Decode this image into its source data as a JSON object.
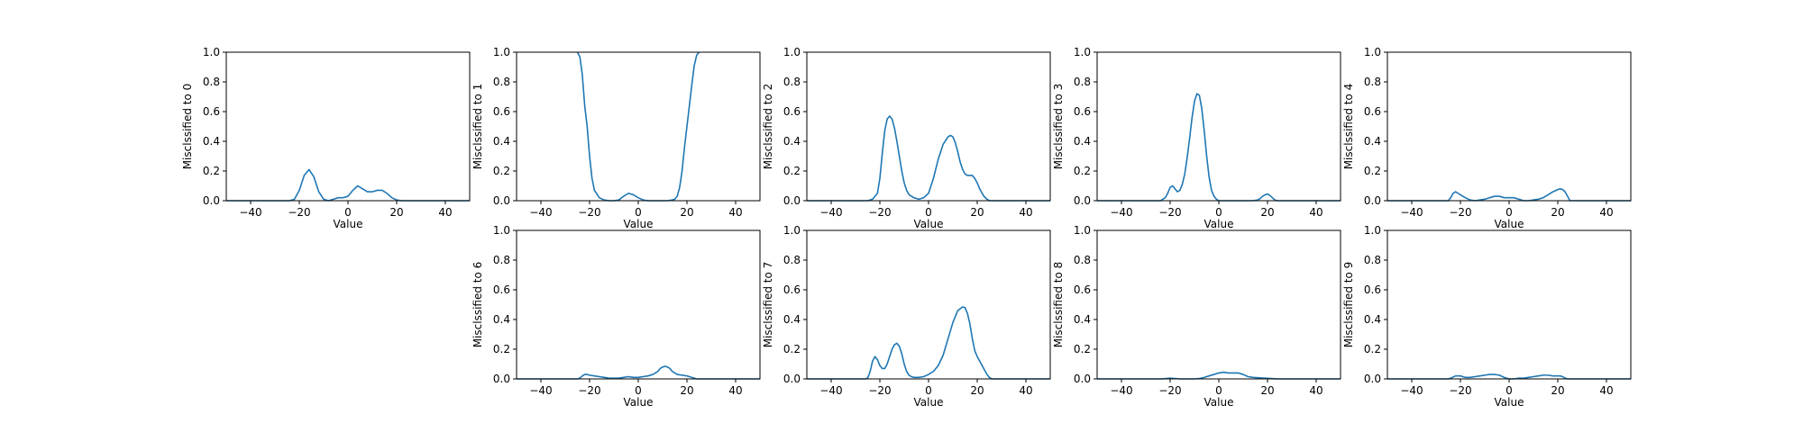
{
  "chart_data": [
    {
      "type": "line",
      "ylabel": "Misclssified to 0",
      "xlabel": "Value",
      "xlim": [
        -50,
        50
      ],
      "ylim": [
        0,
        1
      ],
      "xticks": [
        "−40",
        "−20",
        "0",
        "20",
        "40"
      ],
      "yticks": [
        "0.0",
        "0.2",
        "0.4",
        "0.6",
        "0.8",
        "1.0"
      ],
      "series": [
        {
          "color": "#1f77b4",
          "x": [
            -50,
            -24,
            -22,
            -20,
            -18,
            -16,
            -14,
            -12,
            -10,
            -8,
            -6,
            -4,
            -2,
            0,
            2,
            4,
            6,
            8,
            10,
            12,
            14,
            16,
            18,
            20,
            22,
            50
          ],
          "y": [
            0,
            0,
            0.01,
            0.07,
            0.17,
            0.21,
            0.16,
            0.06,
            0.01,
            0,
            0.01,
            0.02,
            0.02,
            0.03,
            0.07,
            0.1,
            0.08,
            0.06,
            0.06,
            0.07,
            0.07,
            0.05,
            0.02,
            0.005,
            0,
            0
          ]
        }
      ]
    },
    {
      "type": "line",
      "ylabel": "Misclssified to 1",
      "xlabel": "Value",
      "xlim": [
        -50,
        50
      ],
      "ylim": [
        0,
        1
      ],
      "xticks": [
        "−40",
        "−20",
        "0",
        "20",
        "40"
      ],
      "yticks": [
        "0.0",
        "0.2",
        "0.4",
        "0.6",
        "0.8",
        "1.0"
      ],
      "series": [
        {
          "color": "#1f77b4",
          "x": [
            -25,
            -24,
            -23,
            -22,
            -21,
            -20,
            -19,
            -18,
            -16,
            -14,
            -12,
            -10,
            -8,
            -6,
            -4,
            -2,
            0,
            2,
            4,
            6,
            8,
            10,
            12,
            14,
            15,
            16,
            17,
            18,
            19,
            20,
            21,
            22,
            23,
            24,
            25
          ],
          "y": [
            1.0,
            0.97,
            0.85,
            0.64,
            0.5,
            0.3,
            0.15,
            0.07,
            0.02,
            0.005,
            0,
            0,
            0.005,
            0.03,
            0.05,
            0.04,
            0.02,
            0.005,
            0,
            0,
            0,
            0,
            0,
            0.005,
            0.01,
            0.03,
            0.09,
            0.2,
            0.36,
            0.5,
            0.64,
            0.78,
            0.91,
            0.98,
            1.0
          ]
        }
      ]
    },
    {
      "type": "line",
      "ylabel": "Misclssified to 2",
      "xlabel": "Value",
      "xlim": [
        -50,
        50
      ],
      "ylim": [
        0,
        1
      ],
      "xticks": [
        "−40",
        "−20",
        "0",
        "20",
        "40"
      ],
      "yticks": [
        "0.0",
        "0.2",
        "0.4",
        "0.6",
        "0.8",
        "1.0"
      ],
      "series": [
        {
          "color": "#1f77b4",
          "x": [
            -50,
            -25,
            -23,
            -21,
            -20,
            -19,
            -18,
            -17,
            -16,
            -15,
            -14,
            -13,
            -12,
            -11,
            -10,
            -9,
            -8,
            -6,
            -4,
            -2,
            0,
            2,
            4,
            6,
            8,
            9,
            10,
            11,
            12,
            13,
            14,
            15,
            16,
            18,
            19,
            20,
            21,
            22,
            23,
            24,
            25,
            50
          ],
          "y": [
            0,
            0,
            0.01,
            0.05,
            0.15,
            0.32,
            0.47,
            0.55,
            0.57,
            0.55,
            0.49,
            0.4,
            0.3,
            0.2,
            0.12,
            0.07,
            0.04,
            0.02,
            0.01,
            0.02,
            0.05,
            0.15,
            0.28,
            0.38,
            0.43,
            0.44,
            0.43,
            0.39,
            0.33,
            0.26,
            0.21,
            0.18,
            0.17,
            0.17,
            0.15,
            0.12,
            0.08,
            0.05,
            0.025,
            0.01,
            0,
            0
          ]
        }
      ]
    },
    {
      "type": "line",
      "ylabel": "Misclssified to 3",
      "xlabel": "Value",
      "xlim": [
        -50,
        50
      ],
      "ylim": [
        0,
        1
      ],
      "xticks": [
        "−40",
        "−20",
        "0",
        "20",
        "40"
      ],
      "yticks": [
        "0.0",
        "0.2",
        "0.4",
        "0.6",
        "0.8",
        "1.0"
      ],
      "series": [
        {
          "color": "#1f77b4",
          "x": [
            -50,
            -24,
            -22,
            -21,
            -20,
            -19,
            -18,
            -17,
            -16,
            -15,
            -14,
            -13,
            -12,
            -11,
            -10,
            -9,
            -8,
            -7,
            -6,
            -5,
            -4,
            -3,
            -2,
            -1,
            0,
            2,
            4,
            6,
            8,
            10,
            12,
            14,
            16,
            17,
            18,
            19,
            20,
            21,
            22,
            23,
            24,
            50
          ],
          "y": [
            0,
            0,
            0.02,
            0.05,
            0.09,
            0.1,
            0.08,
            0.06,
            0.07,
            0.11,
            0.18,
            0.29,
            0.42,
            0.56,
            0.67,
            0.72,
            0.71,
            0.62,
            0.47,
            0.3,
            0.16,
            0.07,
            0.03,
            0.01,
            0,
            0,
            0,
            0,
            0,
            0,
            0,
            0,
            0.005,
            0.015,
            0.03,
            0.04,
            0.045,
            0.035,
            0.02,
            0.005,
            0,
            0
          ]
        }
      ]
    },
    {
      "type": "line",
      "ylabel": "Misclssified to 4",
      "xlabel": "Value",
      "xlim": [
        -50,
        50
      ],
      "ylim": [
        0,
        1
      ],
      "xticks": [
        "−40",
        "−20",
        "0",
        "20",
        "40"
      ],
      "yticks": [
        "0.0",
        "0.2",
        "0.4",
        "0.6",
        "0.8",
        "1.0"
      ],
      "series": [
        {
          "color": "#1f77b4",
          "x": [
            -50,
            -25,
            -24,
            -23,
            -22,
            -21,
            -20,
            -18,
            -16,
            -14,
            -12,
            -10,
            -8,
            -6,
            -4,
            -2,
            0,
            2,
            4,
            6,
            8,
            10,
            12,
            14,
            16,
            18,
            20,
            21,
            22,
            23,
            24,
            25,
            50
          ],
          "y": [
            0,
            0,
            0.02,
            0.05,
            0.06,
            0.05,
            0.04,
            0.02,
            0.005,
            0,
            0.005,
            0.01,
            0.02,
            0.03,
            0.03,
            0.02,
            0.02,
            0.02,
            0.01,
            0,
            0,
            0.005,
            0.01,
            0.02,
            0.04,
            0.06,
            0.075,
            0.08,
            0.075,
            0.06,
            0.03,
            0,
            0
          ]
        }
      ]
    },
    {
      "type": "line",
      "ylabel": "Misclssified to 6",
      "xlabel": "Value",
      "xlim": [
        -50,
        50
      ],
      "ylim": [
        0,
        1
      ],
      "xticks": [
        "−40",
        "−20",
        "0",
        "20",
        "40"
      ],
      "yticks": [
        "0.0",
        "0.2",
        "0.4",
        "0.6",
        "0.8",
        "1.0"
      ],
      "series": [
        {
          "color": "#1f77b4",
          "x": [
            -50,
            -25,
            -24,
            -23,
            -22,
            -21,
            -20,
            -18,
            -16,
            -14,
            -12,
            -10,
            -8,
            -6,
            -4,
            -2,
            0,
            2,
            4,
            6,
            8,
            9,
            10,
            11,
            12,
            13,
            14,
            16,
            18,
            20,
            21,
            22,
            23,
            24,
            50
          ],
          "y": [
            0,
            0,
            0.005,
            0.02,
            0.03,
            0.03,
            0.025,
            0.02,
            0.015,
            0.01,
            0.005,
            0.005,
            0.005,
            0.01,
            0.015,
            0.01,
            0.01,
            0.015,
            0.02,
            0.03,
            0.05,
            0.07,
            0.08,
            0.085,
            0.08,
            0.07,
            0.05,
            0.03,
            0.025,
            0.02,
            0.015,
            0.01,
            0.005,
            0,
            0
          ]
        }
      ]
    },
    {
      "type": "line",
      "ylabel": "Misclssified to 7",
      "xlabel": "Value",
      "xlim": [
        -50,
        50
      ],
      "ylim": [
        0,
        1
      ],
      "xticks": [
        "−40",
        "−20",
        "0",
        "20",
        "40"
      ],
      "yticks": [
        "0.0",
        "0.2",
        "0.4",
        "0.6",
        "0.8",
        "1.0"
      ],
      "series": [
        {
          "color": "#1f77b4",
          "x": [
            -50,
            -26,
            -25,
            -24,
            -23,
            -22,
            -21,
            -20,
            -19,
            -18,
            -17,
            -16,
            -15,
            -14,
            -13,
            -12,
            -11,
            -10,
            -9,
            -8,
            -7,
            -6,
            -4,
            -2,
            0,
            2,
            4,
            6,
            8,
            10,
            12,
            14,
            15,
            16,
            17,
            18,
            19,
            20,
            22,
            24,
            25,
            26,
            50
          ],
          "y": [
            0,
            0,
            0.005,
            0.05,
            0.12,
            0.15,
            0.13,
            0.09,
            0.07,
            0.07,
            0.1,
            0.15,
            0.2,
            0.23,
            0.24,
            0.22,
            0.17,
            0.1,
            0.05,
            0.025,
            0.015,
            0.01,
            0.01,
            0.015,
            0.03,
            0.05,
            0.09,
            0.16,
            0.27,
            0.38,
            0.46,
            0.485,
            0.48,
            0.44,
            0.37,
            0.27,
            0.19,
            0.15,
            0.09,
            0.03,
            0.01,
            0,
            0
          ]
        }
      ]
    },
    {
      "type": "line",
      "ylabel": "Misclssified to 8",
      "xlabel": "Value",
      "xlim": [
        -50,
        50
      ],
      "ylim": [
        0,
        1
      ],
      "xticks": [
        "−40",
        "−20",
        "0",
        "20",
        "40"
      ],
      "yticks": [
        "0.0",
        "0.2",
        "0.4",
        "0.6",
        "0.8",
        "1.0"
      ],
      "series": [
        {
          "color": "#1f77b4",
          "x": [
            -50,
            -24,
            -22,
            -20,
            -18,
            -16,
            -14,
            -12,
            -10,
            -8,
            -6,
            -4,
            -2,
            0,
            2,
            4,
            6,
            8,
            10,
            12,
            14,
            16,
            18,
            20,
            22,
            24,
            50
          ],
          "y": [
            0,
            0,
            0.002,
            0.005,
            0.003,
            0,
            0,
            0,
            0,
            0.003,
            0.01,
            0.02,
            0.03,
            0.04,
            0.045,
            0.04,
            0.04,
            0.04,
            0.03,
            0.015,
            0.01,
            0.008,
            0.006,
            0.004,
            0.002,
            0,
            0
          ]
        }
      ]
    },
    {
      "type": "line",
      "ylabel": "Misclssified to 9",
      "xlabel": "Value",
      "xlim": [
        -50,
        50
      ],
      "ylim": [
        0,
        1
      ],
      "xticks": [
        "−40",
        "−20",
        "0",
        "20",
        "40"
      ],
      "yticks": [
        "0.0",
        "0.2",
        "0.4",
        "0.6",
        "0.8",
        "1.0"
      ],
      "series": [
        {
          "color": "#1f77b4",
          "x": [
            -50,
            -25,
            -24,
            -22,
            -20,
            -18,
            -16,
            -14,
            -12,
            -10,
            -8,
            -6,
            -4,
            -2,
            0,
            2,
            4,
            6,
            8,
            10,
            12,
            14,
            16,
            18,
            20,
            21,
            22,
            23,
            24,
            50
          ],
          "y": [
            0,
            0,
            0.005,
            0.02,
            0.02,
            0.01,
            0.01,
            0.015,
            0.02,
            0.025,
            0.03,
            0.03,
            0.025,
            0.01,
            0,
            0,
            0.005,
            0.005,
            0.01,
            0.015,
            0.02,
            0.025,
            0.025,
            0.02,
            0.02,
            0.02,
            0.015,
            0.005,
            0,
            0
          ]
        }
      ]
    }
  ]
}
